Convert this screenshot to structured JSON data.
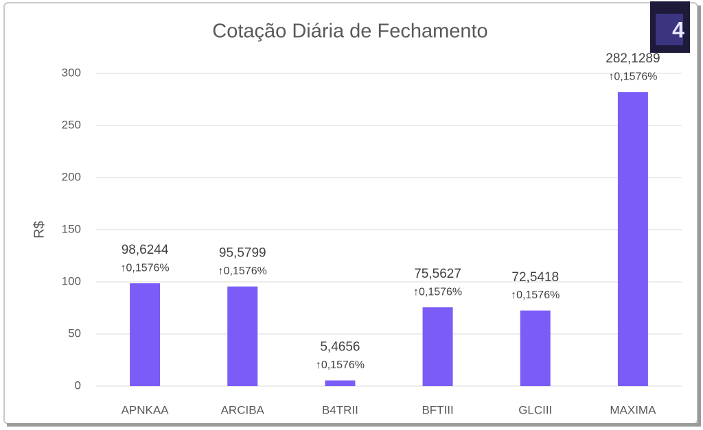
{
  "logo": "4",
  "chart_data": {
    "type": "bar",
    "title": "Cotação Diária de Fechamento",
    "y_label": "R$",
    "categories": [
      "APNKAA",
      "ARCIBA",
      "B4TRII",
      "BFTIII",
      "GLCIII",
      "MAXIMA"
    ],
    "values": [
      98.6244,
      95.5799,
      5.4656,
      75.5627,
      72.5418,
      282.1289
    ],
    "value_labels": [
      "98,6244",
      "95,5799",
      "5,4656",
      "75,5627",
      "72,5418",
      "282,1289"
    ],
    "change_labels": [
      "↑0,1576%",
      "↑0,1576%",
      "↑0,1576%",
      "↑0,1576%",
      "↑0,1576%",
      "↑0,1576%"
    ],
    "color": "#7b5cf6",
    "ylim": [
      0,
      300
    ],
    "yticks": [
      0,
      50,
      100,
      150,
      200,
      250,
      300
    ],
    "grid": true
  }
}
